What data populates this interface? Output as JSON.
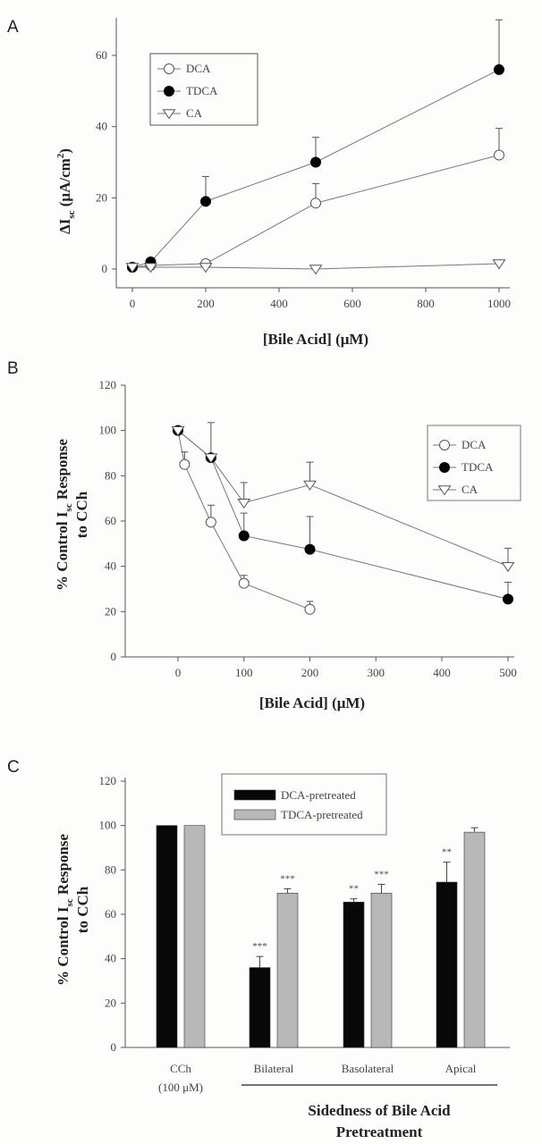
{
  "chart_data": [
    {
      "panel": "A",
      "type": "line",
      "xlabel": "[Bile Acid] (μM)",
      "ylabel": "ΔI",
      "ylabel_sub": "sc",
      "ylabel_rest": " (μA/cm",
      "ylabel_sup": "2",
      "ylabel_end": ")",
      "xticks": [
        "0",
        "200",
        "400",
        "600",
        "800",
        "1000"
      ],
      "yticks": [
        "0",
        "20",
        "40",
        "60"
      ],
      "xlim": [
        -40,
        1040
      ],
      "ylim": [
        -5,
        70
      ],
      "legend": "top-left",
      "series": [
        {
          "name": "DCA",
          "marker": "open-circle",
          "x": [
            0,
            50,
            200,
            500,
            1000
          ],
          "y": [
            0.5,
            1,
            1.5,
            18.5,
            32
          ],
          "err": [
            0.8,
            0.8,
            1,
            5.5,
            7.5
          ]
        },
        {
          "name": "TDCA",
          "marker": "filled-circle",
          "x": [
            0,
            50,
            200,
            500,
            1000
          ],
          "y": [
            0.5,
            2,
            19,
            30,
            56
          ],
          "err": [
            0.8,
            0.8,
            7,
            7,
            14
          ]
        },
        {
          "name": "CA",
          "marker": "open-triangle",
          "x": [
            0,
            50,
            200,
            500,
            1000
          ],
          "y": [
            0.5,
            0.5,
            0.5,
            0,
            1.5
          ],
          "err": [
            0,
            0,
            0,
            0,
            0
          ]
        }
      ]
    },
    {
      "panel": "B",
      "type": "line",
      "xlabel": "[Bile Acid] (μM)",
      "ylabel_l1": "% Control I",
      "ylabel_sub": "sc",
      "ylabel_rest": " Response",
      "ylabel_l2": "to CCh",
      "xticks": [
        "0",
        "100",
        "200",
        "300",
        "400",
        "500"
      ],
      "yticks": [
        "0",
        "20",
        "40",
        "60",
        "80",
        "100",
        "120"
      ],
      "xlim": [
        -80,
        500
      ],
      "ylim": [
        0,
        120
      ],
      "legend": "right",
      "series": [
        {
          "name": "DCA",
          "marker": "open-circle",
          "x": [
            0,
            10,
            50,
            100,
            200
          ],
          "y": [
            100,
            85,
            59.5,
            32.5,
            21
          ],
          "err": [
            0,
            5.5,
            7.5,
            3.5,
            3.5
          ]
        },
        {
          "name": "TDCA",
          "marker": "filled-circle",
          "x": [
            0,
            50,
            100,
            200,
            500
          ],
          "y": [
            100,
            88,
            53.5,
            47.5,
            25.5
          ],
          "err": [
            0,
            15.5,
            10,
            14.5,
            7.5
          ]
        },
        {
          "name": "CA",
          "marker": "open-triangle",
          "x": [
            0,
            50,
            100,
            200,
            500
          ],
          "y": [
            100,
            88,
            68,
            76,
            40
          ],
          "err": [
            0,
            0,
            9,
            10,
            8
          ]
        }
      ]
    },
    {
      "panel": "C",
      "type": "bar",
      "xlabel_l1": "Sidedness of Bile Acid",
      "xlabel_l2": "Pretreatment",
      "ylabel_l1": "% Control I",
      "ylabel_sub": "sc",
      "ylabel_rest": " Response",
      "ylabel_l2": "to CCh",
      "yticks": [
        "0",
        "20",
        "40",
        "60",
        "80",
        "100",
        "120"
      ],
      "ylim": [
        0,
        120
      ],
      "categories": [
        "CCh",
        "Bilateral",
        "Basolateral",
        "Apical"
      ],
      "category_sub": [
        "(100 μM)",
        "",
        "",
        ""
      ],
      "legend": "top",
      "series": [
        {
          "name": "DCA-pretreated",
          "color": "#080808",
          "values": [
            100,
            36,
            65.5,
            74.5
          ],
          "err": [
            0,
            5,
            1.5,
            9
          ],
          "sig": [
            "",
            "***",
            "**",
            "**"
          ]
        },
        {
          "name": "TDCA-pretreated",
          "color": "#b8b8b8",
          "values": [
            100,
            69.5,
            69.5,
            97
          ],
          "err": [
            0,
            2,
            4,
            2
          ],
          "sig": [
            "",
            "***",
            "***",
            ""
          ]
        }
      ]
    }
  ]
}
